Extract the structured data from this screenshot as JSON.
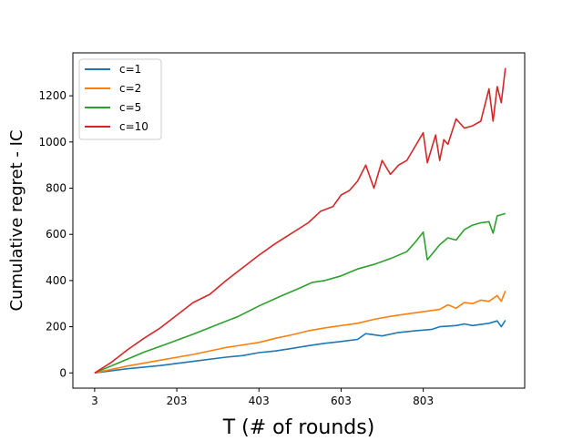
{
  "chart_data": {
    "type": "line",
    "title": "",
    "xlabel": "T (# of rounds)",
    "ylabel": "Cumulative regret - IC",
    "xlim": [
      -50,
      1050
    ],
    "ylim": [
      -66,
      1386
    ],
    "xticks": [
      3,
      203,
      403,
      603,
      803
    ],
    "yticks": [
      0,
      200,
      400,
      600,
      800,
      1000,
      1200
    ],
    "legend_position": "upper-left",
    "series": [
      {
        "name": "c=1",
        "color": "#1f77b4",
        "points": [
          [
            3,
            0
          ],
          [
            83,
            18
          ],
          [
            163,
            32
          ],
          [
            243,
            50
          ],
          [
            323,
            68
          ],
          [
            363,
            75
          ],
          [
            403,
            88
          ],
          [
            443,
            95
          ],
          [
            483,
            106
          ],
          [
            523,
            118
          ],
          [
            563,
            128
          ],
          [
            603,
            136
          ],
          [
            643,
            145
          ],
          [
            663,
            170
          ],
          [
            703,
            160
          ],
          [
            743,
            175
          ],
          [
            783,
            182
          ],
          [
            823,
            188
          ],
          [
            843,
            200
          ],
          [
            883,
            205
          ],
          [
            903,
            212
          ],
          [
            923,
            205
          ],
          [
            963,
            215
          ],
          [
            983,
            225
          ],
          [
            993,
            200
          ],
          [
            1003,
            228
          ]
        ]
      },
      {
        "name": "c=2",
        "color": "#ff7f0e",
        "points": [
          [
            3,
            0
          ],
          [
            83,
            30
          ],
          [
            163,
            55
          ],
          [
            243,
            80
          ],
          [
            323,
            110
          ],
          [
            403,
            132
          ],
          [
            443,
            150
          ],
          [
            483,
            165
          ],
          [
            523,
            182
          ],
          [
            563,
            195
          ],
          [
            603,
            205
          ],
          [
            643,
            215
          ],
          [
            683,
            232
          ],
          [
            723,
            245
          ],
          [
            763,
            255
          ],
          [
            803,
            265
          ],
          [
            843,
            275
          ],
          [
            863,
            295
          ],
          [
            883,
            280
          ],
          [
            903,
            305
          ],
          [
            923,
            300
          ],
          [
            943,
            315
          ],
          [
            963,
            310
          ],
          [
            983,
            335
          ],
          [
            993,
            310
          ],
          [
            1003,
            355
          ]
        ]
      },
      {
        "name": "c=5",
        "color": "#2ca02c",
        "points": [
          [
            3,
            0
          ],
          [
            63,
            45
          ],
          [
            123,
            90
          ],
          [
            183,
            128
          ],
          [
            243,
            168
          ],
          [
            303,
            210
          ],
          [
            353,
            245
          ],
          [
            403,
            290
          ],
          [
            453,
            330
          ],
          [
            503,
            368
          ],
          [
            533,
            392
          ],
          [
            563,
            400
          ],
          [
            603,
            420
          ],
          [
            643,
            450
          ],
          [
            683,
            470
          ],
          [
            723,
            495
          ],
          [
            763,
            525
          ],
          [
            783,
            565
          ],
          [
            803,
            610
          ],
          [
            813,
            490
          ],
          [
            843,
            555
          ],
          [
            863,
            585
          ],
          [
            883,
            575
          ],
          [
            903,
            620
          ],
          [
            923,
            640
          ],
          [
            943,
            650
          ],
          [
            963,
            655
          ],
          [
            973,
            605
          ],
          [
            983,
            680
          ],
          [
            1003,
            690
          ]
        ]
      },
      {
        "name": "c=10",
        "color": "#d62728",
        "points": [
          [
            3,
            0
          ],
          [
            43,
            45
          ],
          [
            83,
            100
          ],
          [
            123,
            150
          ],
          [
            163,
            195
          ],
          [
            203,
            250
          ],
          [
            243,
            305
          ],
          [
            283,
            340
          ],
          [
            323,
            400
          ],
          [
            363,
            455
          ],
          [
            403,
            510
          ],
          [
            443,
            560
          ],
          [
            483,
            605
          ],
          [
            523,
            650
          ],
          [
            553,
            700
          ],
          [
            583,
            720
          ],
          [
            603,
            770
          ],
          [
            623,
            790
          ],
          [
            643,
            830
          ],
          [
            663,
            900
          ],
          [
            683,
            800
          ],
          [
            703,
            920
          ],
          [
            723,
            860
          ],
          [
            743,
            900
          ],
          [
            763,
            920
          ],
          [
            783,
            980
          ],
          [
            803,
            1040
          ],
          [
            813,
            910
          ],
          [
            833,
            1030
          ],
          [
            843,
            920
          ],
          [
            853,
            1010
          ],
          [
            863,
            990
          ],
          [
            883,
            1100
          ],
          [
            903,
            1060
          ],
          [
            923,
            1070
          ],
          [
            943,
            1090
          ],
          [
            963,
            1230
          ],
          [
            973,
            1090
          ],
          [
            983,
            1240
          ],
          [
            993,
            1170
          ],
          [
            1003,
            1320
          ]
        ]
      }
    ]
  }
}
